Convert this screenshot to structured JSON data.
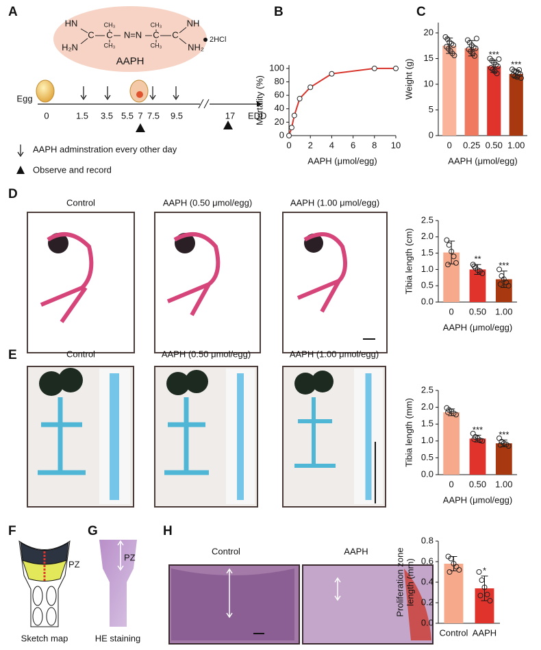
{
  "panel_labels": [
    "A",
    "B",
    "C",
    "D",
    "E",
    "F",
    "G",
    "H"
  ],
  "structure": {
    "atoms": [
      "HN",
      "H₂N",
      "C",
      "C",
      "N=N",
      "C",
      "C",
      "NH",
      "NH₂",
      "CH₃",
      "CH₃",
      "CH₃",
      "CH₃"
    ],
    "name": "AAPH",
    "salt": "2HCl"
  },
  "timeline": {
    "egg": "Egg",
    "days": [
      "0",
      "1.5",
      "3.5",
      "5.5",
      "7",
      "7.5",
      "9.5",
      "17"
    ],
    "end": "EDD",
    "legend": [
      "AAPH adminstration every other day",
      "Observe and record"
    ]
  },
  "photos": {
    "d_captions": [
      "Control",
      "AAPH (0.50 μmol/egg)",
      "AAPH (1.00 μmol/egg)"
    ],
    "e_captions": [
      "Control",
      "AAPH (0.50 μmol/egg)",
      "AAPH (1.00 μmol/egg)"
    ],
    "h_captions": [
      "Control",
      "AAPH"
    ]
  },
  "sketch": {
    "zone": "PZ",
    "caption": "Sketch map"
  },
  "he": {
    "zone": "PZ",
    "caption": "HE staining"
  },
  "chart_data": [
    {
      "type": "line",
      "ylabel": "Mortality (%)",
      "xlabel": "AAPH (μmol/egg)",
      "x": [
        0,
        0.25,
        0.5,
        1,
        2,
        4,
        8,
        10
      ],
      "values": [
        0,
        12,
        30,
        55,
        72,
        92,
        100,
        100
      ],
      "color": "#d9342b",
      "xlim": [
        0,
        10
      ],
      "xticks": [
        0,
        2,
        4,
        6,
        8,
        10
      ],
      "ylim": [
        0,
        105
      ],
      "yticks": [
        0,
        20,
        40,
        60,
        80,
        100
      ]
    },
    {
      "type": "bar",
      "ylabel": "Weight (g)",
      "xlabel": "AAPH (μmol/egg)",
      "categories": [
        "0",
        "0.25",
        "0.50",
        "1.00"
      ],
      "values": [
        17.5,
        17,
        13.5,
        12
      ],
      "errors": [
        1.5,
        1.5,
        1.2,
        0.8
      ],
      "points": [
        [
          19.2,
          18.8,
          18.2,
          17.9,
          17.6,
          17.3,
          16.9,
          16.5,
          16.0,
          15.6
        ],
        [
          18.6,
          18.1,
          17.6,
          17.2,
          17.0,
          16.8,
          16.4,
          16.0,
          15.5,
          18.9
        ],
        [
          15.0,
          14.6,
          14.2,
          13.8,
          13.5,
          13.2,
          12.9,
          12.5,
          12.1,
          14.9
        ],
        [
          12.9,
          12.6,
          12.4,
          12.2,
          12.0,
          11.8,
          11.6,
          11.4,
          12.8,
          11.2
        ]
      ],
      "annotations": [
        null,
        null,
        "***",
        "***"
      ],
      "colors": [
        "#f9b49a",
        "#f07a5f",
        "#e0332c",
        "#a8380f"
      ],
      "ylim": [
        0,
        22
      ],
      "yticks": [
        0,
        5,
        10,
        15,
        20
      ]
    },
    {
      "type": "bar",
      "ylabel": "Tibia length (cm)",
      "xlabel": "AAPH (μmol/egg)",
      "categories": [
        "0",
        "0.50",
        "1.00"
      ],
      "values": [
        1.52,
        1.0,
        0.7
      ],
      "errors": [
        0.35,
        0.15,
        0.25
      ],
      "points": [
        [
          1.9,
          1.75,
          1.55,
          1.4,
          1.2,
          1.15
        ],
        [
          1.15,
          1.05,
          0.98,
          0.95,
          0.88,
          1.1
        ],
        [
          1.0,
          0.8,
          0.7,
          0.6,
          0.5,
          0.55
        ]
      ],
      "annotations": [
        null,
        "**",
        "***"
      ],
      "colors": [
        "#f7a98b",
        "#e0332c",
        "#a8380f"
      ],
      "ylim": [
        0,
        2.5
      ],
      "yticks": [
        {
          "value": 0,
          "label": "0.0"
        },
        {
          "value": 0.5,
          "label": "0.5"
        },
        {
          "value": 1,
          "label": "1.0"
        },
        {
          "value": 1.5,
          "label": "1.5"
        },
        {
          "value": 2,
          "label": "2.0"
        },
        {
          "value": 2.5,
          "label": "2.5"
        }
      ]
    },
    {
      "type": "bar",
      "ylabel": "Tibia length (mm)",
      "xlabel": "AAPH (μmol/egg)",
      "categories": [
        "0",
        "0.50",
        "1.00"
      ],
      "values": [
        1.85,
        1.07,
        0.93
      ],
      "errors": [
        0.1,
        0.1,
        0.1
      ],
      "points": [
        [
          1.98,
          1.92,
          1.88,
          1.82,
          1.78,
          1.85
        ],
        [
          1.22,
          1.12,
          1.08,
          1.02,
          1.0,
          1.05
        ],
        [
          1.08,
          0.98,
          0.93,
          0.9,
          0.85,
          0.88
        ]
      ],
      "annotations": [
        null,
        "***",
        "***"
      ],
      "colors": [
        "#f7a98b",
        "#e0332c",
        "#a8380f"
      ],
      "ylim": [
        0,
        2.5
      ],
      "yticks": [
        {
          "value": 0,
          "label": "0.0"
        },
        {
          "value": 0.5,
          "label": "0.5"
        },
        {
          "value": 1,
          "label": "1.0"
        },
        {
          "value": 1.5,
          "label": "1.5"
        },
        {
          "value": 2,
          "label": "2.0"
        },
        {
          "value": 2.5,
          "label": "2.5"
        }
      ]
    },
    {
      "type": "bar",
      "ylabel": [
        "Proliferation zone",
        "length (mm)"
      ],
      "categories": [
        "Control",
        "AAPH"
      ],
      "values": [
        0.58,
        0.34
      ],
      "errors": [
        0.07,
        0.12
      ],
      "points": [
        [
          0.65,
          0.63,
          0.58,
          0.55,
          0.52,
          0.5
        ],
        [
          0.5,
          0.42,
          0.35,
          0.28,
          0.22,
          0.27
        ]
      ],
      "annotations": [
        null,
        "*"
      ],
      "colors": [
        "#f7a98b",
        "#e0332c"
      ],
      "ylim": [
        0,
        0.8
      ],
      "yticks": [
        {
          "value": 0,
          "label": "0.0"
        },
        {
          "value": 0.2,
          "label": "0.2"
        },
        {
          "value": 0.4,
          "label": "0.4"
        },
        {
          "value": 0.6,
          "label": "0.6"
        },
        {
          "value": 0.8,
          "label": "0.8"
        }
      ]
    }
  ]
}
